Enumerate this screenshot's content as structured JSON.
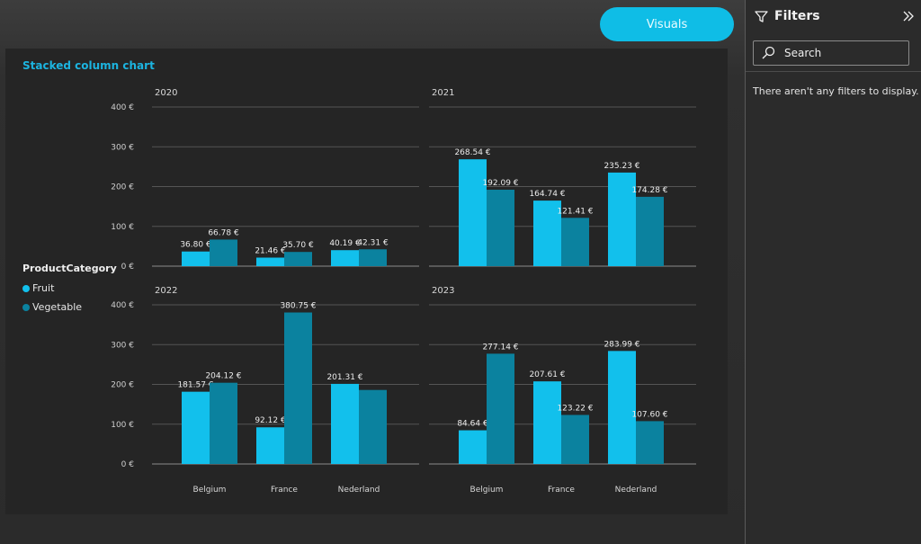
{
  "toolbar": {
    "visuals_label": "Visuals"
  },
  "colors": {
    "fruit": "#12c0ec",
    "vegetable": "#0b829f",
    "accent": "#0fbde6",
    "title": "#1cb4e0"
  },
  "filters": {
    "title": "Filters",
    "search_placeholder": "Search",
    "empty_message": "There aren't any filters to display."
  },
  "chart_data": {
    "type": "bar",
    "title": "Stacked column chart",
    "legend": {
      "title": "ProductCategory",
      "position": "left"
    },
    "categories": [
      "Belgium",
      "France",
      "Nederland"
    ],
    "y_ticks": [
      "0 €",
      "100 €",
      "200 €",
      "300 €",
      "400 €"
    ],
    "ylim": [
      0,
      400
    ],
    "grid": true,
    "panels": [
      {
        "year": "2020",
        "series": [
          {
            "name": "Fruit",
            "values": [
              36.8,
              21.46,
              40.19
            ],
            "labels": [
              "36.80 €",
              "21.46 €",
              "40.19 €"
            ]
          },
          {
            "name": "Vegetable",
            "values": [
              66.78,
              35.7,
              42.31
            ],
            "labels": [
              "66.78 €",
              "35.70 €",
              "42.31 €"
            ]
          }
        ]
      },
      {
        "year": "2021",
        "series": [
          {
            "name": "Fruit",
            "values": [
              268.54,
              164.74,
              235.23
            ],
            "labels": [
              "268.54 €",
              "164.74 €",
              "235.23 €"
            ]
          },
          {
            "name": "Vegetable",
            "values": [
              192.09,
              121.41,
              174.28
            ],
            "labels": [
              "192.09 €",
              "121.41 €",
              "174.28 €"
            ]
          }
        ]
      },
      {
        "year": "2022",
        "series": [
          {
            "name": "Fruit",
            "values": [
              181.57,
              92.12,
              201.31
            ],
            "labels": [
              "181.57 €",
              "92.12 €",
              "201.31 €"
            ]
          },
          {
            "name": "Vegetable",
            "values": [
              204.12,
              380.75,
              186
            ],
            "labels": [
              "204.12 €",
              "380.75 €",
              ""
            ]
          }
        ]
      },
      {
        "year": "2023",
        "series": [
          {
            "name": "Fruit",
            "values": [
              84.64,
              207.61,
              283.99
            ],
            "labels": [
              "84.64 €",
              "207.61 €",
              "283.99 €"
            ]
          },
          {
            "name": "Vegetable",
            "values": [
              277.14,
              123.22,
              107.6
            ],
            "labels": [
              "277.14 €",
              "123.22 €",
              "107.60 €"
            ]
          }
        ]
      }
    ]
  }
}
